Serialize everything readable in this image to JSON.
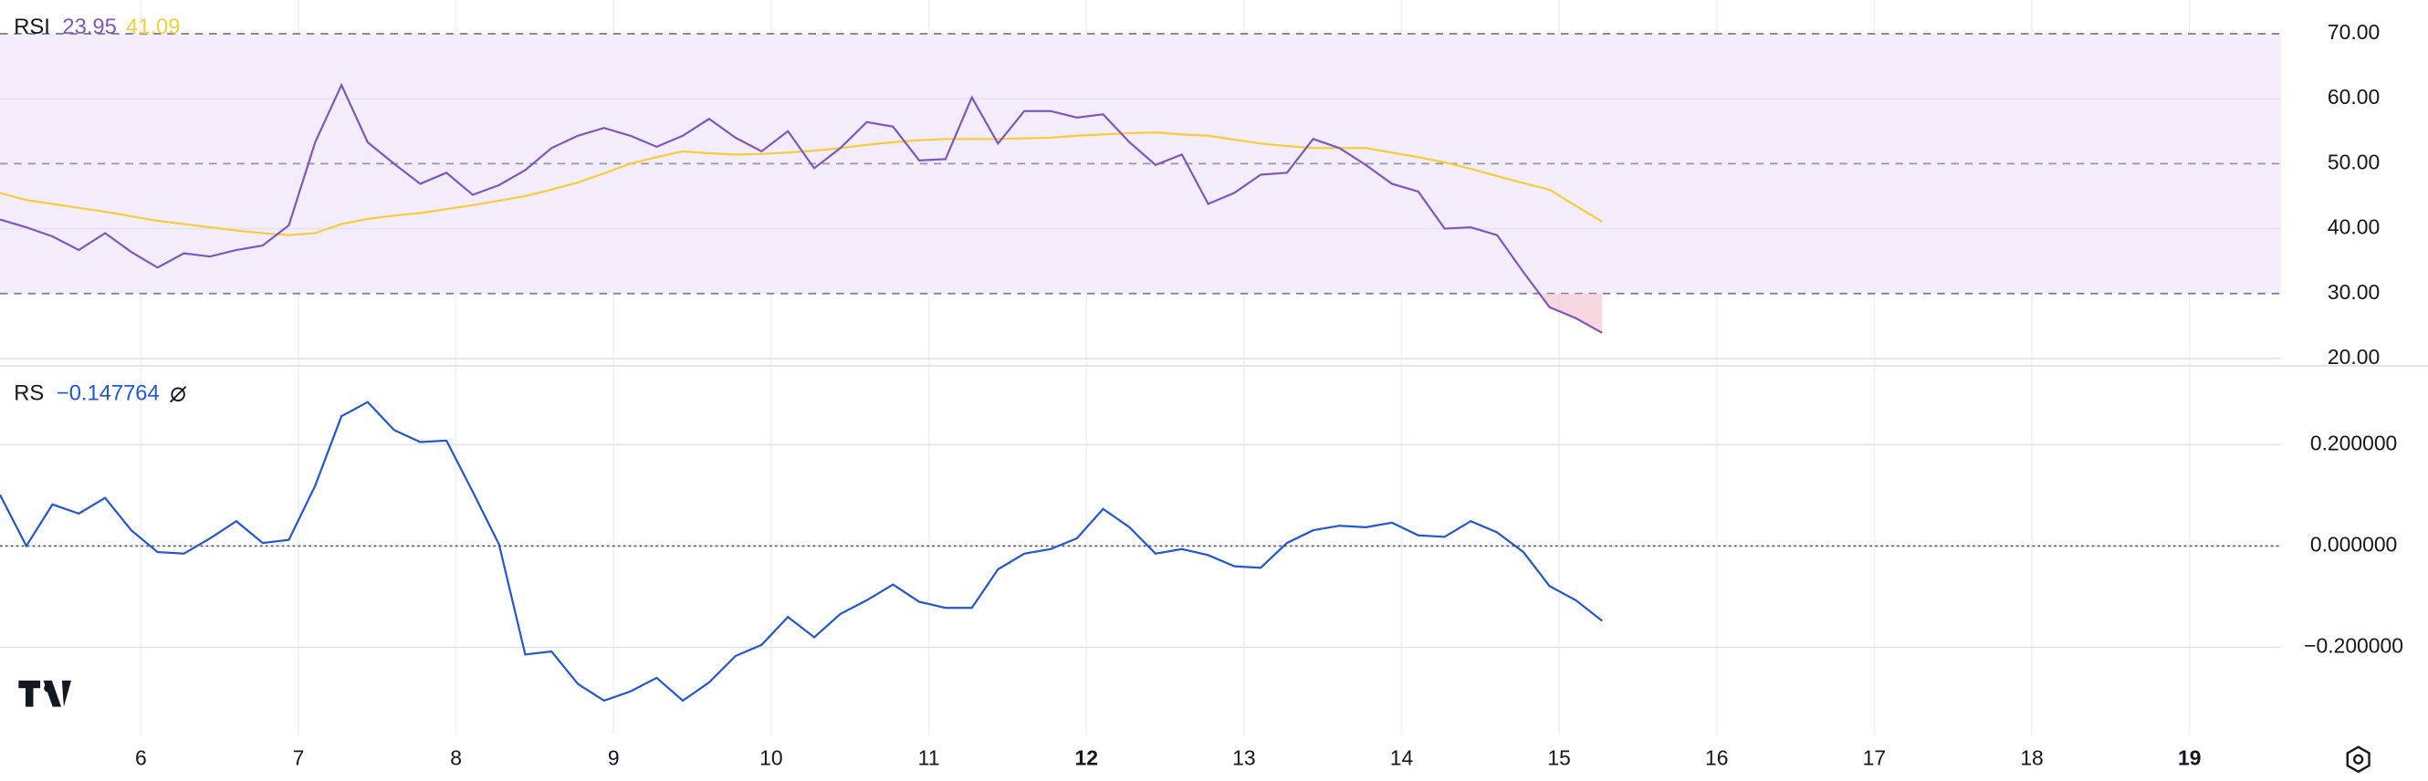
{
  "x_axis": {
    "xlim": [
      5.106,
      19.58
    ],
    "xticks": [
      6,
      7,
      8,
      9,
      10,
      11,
      12,
      13,
      14,
      15,
      16,
      17,
      18,
      19
    ],
    "bold_ticks": [
      12,
      19
    ],
    "x": [
      5.106,
      5.273,
      5.439,
      5.606,
      5.773,
      5.939,
      6.106,
      6.273,
      6.439,
      6.606,
      6.773,
      6.939,
      7.106,
      7.273,
      7.439,
      7.606,
      7.773,
      7.939,
      8.106,
      8.273,
      8.439,
      8.606,
      8.773,
      8.939,
      9.106,
      9.273,
      9.439,
      9.606,
      9.773,
      9.939,
      10.106,
      10.273,
      10.439,
      10.606,
      10.773,
      10.939,
      11.106,
      11.273,
      11.439,
      11.606,
      11.773,
      11.939,
      12.106,
      12.273,
      12.439,
      12.606,
      12.773,
      12.939,
      13.106,
      13.273,
      13.439,
      13.606,
      13.773,
      13.939,
      14.106,
      14.273,
      14.439,
      14.606,
      14.773,
      14.939,
      15.106,
      15.273
    ]
  },
  "chart_data": [
    {
      "type": "line",
      "title": "RSI",
      "ylim": [
        19,
        75.2
      ],
      "yticks": [
        {
          "value": 20,
          "label": "20.00"
        },
        {
          "value": 30,
          "label": "30.00"
        },
        {
          "value": 40,
          "label": "40.00"
        },
        {
          "value": 50,
          "label": "50.00"
        },
        {
          "value": 60,
          "label": "60.00"
        },
        {
          "value": 70,
          "label": "70.00"
        }
      ],
      "bands": {
        "upper": 70,
        "middle": 50,
        "lower": 30
      },
      "band_color": "#f3ecfa",
      "oversold_color": "#f7c6d4",
      "grid": true,
      "series": [
        {
          "color": "#7e57c2",
          "values": [
            41.4,
            40.2,
            38.8,
            36.7,
            39.3,
            36.4,
            34.0,
            36.2,
            35.7,
            36.7,
            37.4,
            40.5,
            53.3,
            62.1,
            53.3,
            50.0,
            46.9,
            48.6,
            45.2,
            46.7,
            49.0,
            52.4,
            54.3,
            55.5,
            54.3,
            52.6,
            54.3,
            56.9,
            54.0,
            51.9,
            55.0,
            49.3,
            52.4,
            56.4,
            55.7,
            50.5,
            50.7,
            60.2,
            53.1,
            58.1,
            58.1,
            57.1,
            57.6,
            53.3,
            49.8,
            51.4,
            43.8,
            45.5,
            48.3,
            48.6,
            53.8,
            52.4,
            49.8,
            46.9,
            45.7,
            40.0,
            40.2,
            39.0,
            33.3,
            27.9,
            26.2,
            23.95
          ]
        },
        {
          "color": "#f7cd3a",
          "values": [
            45.5,
            44.4,
            43.8,
            43.2,
            42.6,
            41.9,
            41.2,
            40.7,
            40.2,
            39.7,
            39.3,
            39.0,
            39.3,
            40.7,
            41.5,
            42.0,
            42.4,
            43.0,
            43.6,
            44.3,
            45.0,
            46.0,
            47.1,
            48.5,
            50.0,
            51.0,
            51.9,
            51.6,
            51.4,
            51.5,
            51.7,
            52.0,
            52.4,
            52.9,
            53.3,
            53.6,
            53.8,
            53.8,
            53.8,
            53.9,
            54.0,
            54.3,
            54.5,
            54.7,
            54.8,
            54.5,
            54.3,
            53.7,
            53.1,
            52.7,
            52.4,
            52.4,
            52.4,
            51.7,
            51.0,
            50.2,
            49.2,
            48.1,
            47.0,
            46.0,
            43.5,
            41.09
          ]
        }
      ]
    },
    {
      "type": "line",
      "title": "RS",
      "legend_value": "−0.147764",
      "ylim": [
        -0.372,
        0.354
      ],
      "yticks": [
        {
          "value": -0.2,
          "label": "−0.200000"
        },
        {
          "value": 0,
          "label": "0.000000"
        },
        {
          "value": 0.2,
          "label": "0.200000"
        }
      ],
      "hline": 0,
      "grid": true,
      "series": [
        {
          "color": "#2157d4",
          "values": [
            0.101,
            0.0,
            0.082,
            0.064,
            0.095,
            0.031,
            -0.012,
            -0.015,
            0.015,
            0.049,
            0.006,
            0.012,
            0.119,
            0.256,
            0.284,
            0.229,
            0.205,
            0.208,
            0.107,
            0.003,
            -0.214,
            -0.208,
            -0.272,
            -0.305,
            -0.287,
            -0.26,
            -0.305,
            -0.269,
            -0.217,
            -0.195,
            -0.14,
            -0.18,
            -0.134,
            -0.107,
            -0.076,
            -0.11,
            -0.122,
            -0.122,
            -0.046,
            -0.015,
            -0.006,
            0.015,
            0.073,
            0.037,
            -0.015,
            -0.006,
            -0.018,
            -0.04,
            -0.043,
            0.006,
            0.031,
            0.04,
            0.037,
            0.046,
            0.021,
            0.018,
            0.049,
            0.027,
            -0.012,
            -0.079,
            -0.107,
            -0.147764
          ]
        }
      ]
    }
  ]
}
